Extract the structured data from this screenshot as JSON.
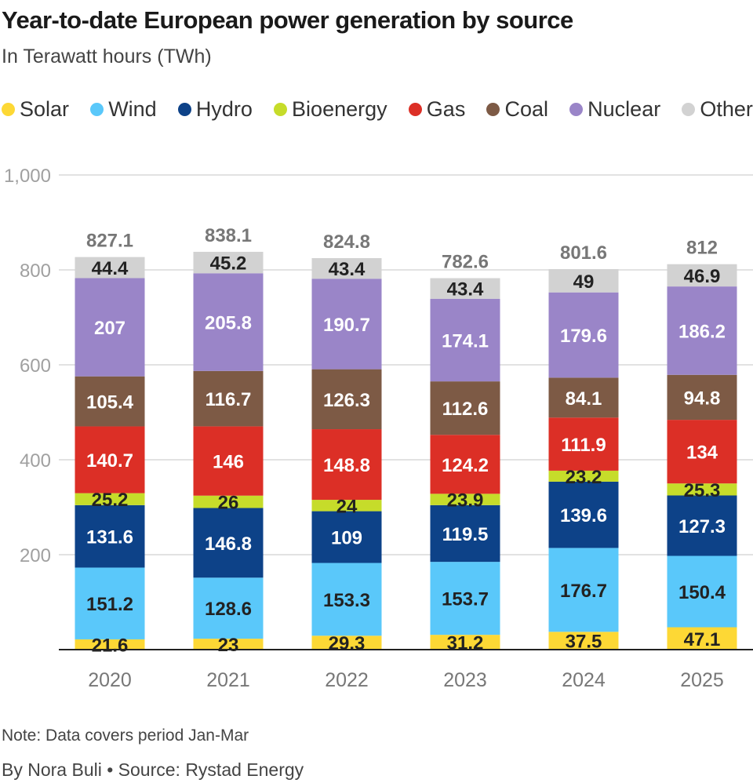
{
  "title": "Year-to-date European power generation by source",
  "subtitle": "In Terawatt hours (TWh)",
  "note": "Note: Data covers period Jan-Mar",
  "byline": "By Nora Buli • Source: Rystad Energy",
  "chart_data": {
    "type": "bar",
    "stacked": true,
    "categories": [
      "2020",
      "2021",
      "2022",
      "2023",
      "2024",
      "2025"
    ],
    "ylim": [
      0,
      1000
    ],
    "yticks": [
      0,
      200,
      400,
      600,
      800,
      1000
    ],
    "ytick_labels": [
      "",
      "200",
      "400",
      "600",
      "800",
      "1,000"
    ],
    "grid": true,
    "legend_position": "top",
    "totals": [
      "827.1",
      "838.1",
      "824.8",
      "782.6",
      "801.6",
      "812"
    ],
    "series": [
      {
        "name": "Solar",
        "color": "#fdd835",
        "label_color": "#222222",
        "values": [
          21.6,
          23,
          29.3,
          31.2,
          37.5,
          47.1
        ]
      },
      {
        "name": "Wind",
        "color": "#5ac8fa",
        "label_color": "#222222",
        "values": [
          151.2,
          128.6,
          153.3,
          153.7,
          176.7,
          150.4
        ]
      },
      {
        "name": "Hydro",
        "color": "#0d4288",
        "label_color": "#ffffff",
        "values": [
          131.6,
          146.8,
          109,
          119.5,
          139.6,
          127.3
        ]
      },
      {
        "name": "Bioenergy",
        "color": "#c6dc2a",
        "label_color": "#222222",
        "values": [
          25.2,
          26,
          24,
          23.9,
          23.2,
          25.3
        ]
      },
      {
        "name": "Gas",
        "color": "#dc2f26",
        "label_color": "#ffffff",
        "values": [
          140.7,
          146,
          148.8,
          124.2,
          111.9,
          134
        ]
      },
      {
        "name": "Coal",
        "color": "#7d5a45",
        "label_color": "#ffffff",
        "values": [
          105.4,
          116.7,
          126.3,
          112.6,
          84.1,
          94.8
        ]
      },
      {
        "name": "Nuclear",
        "color": "#9a85c8",
        "label_color": "#ffffff",
        "values": [
          207,
          205.8,
          190.7,
          174.1,
          179.6,
          186.2
        ]
      },
      {
        "name": "Other",
        "color": "#d2d2d2",
        "label_color": "#222222",
        "values": [
          44.4,
          45.2,
          43.4,
          43.4,
          49,
          46.9
        ]
      }
    ]
  }
}
